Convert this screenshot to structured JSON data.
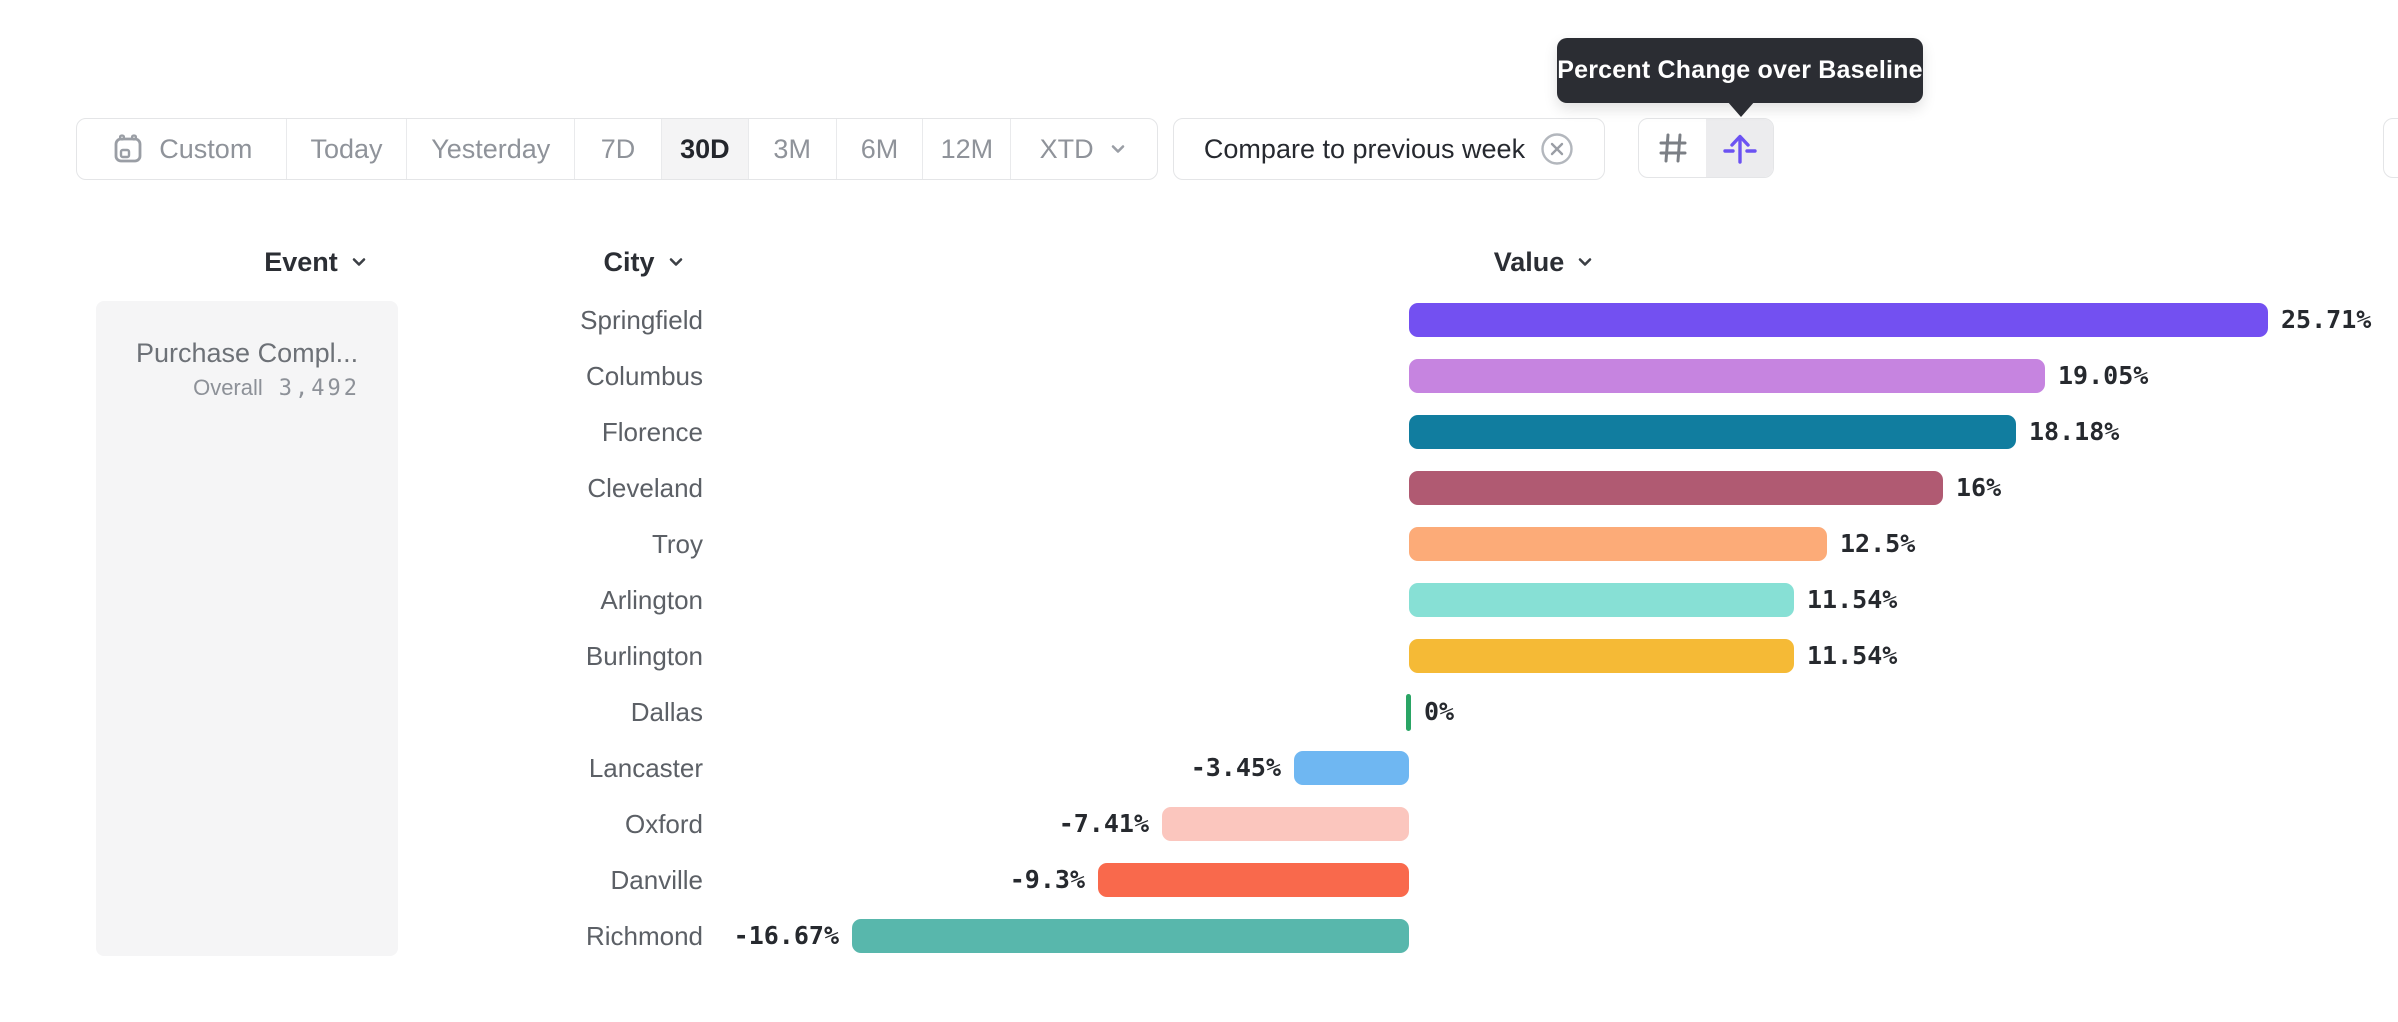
{
  "tooltip": {
    "text": "Percent Change over Baseline"
  },
  "toolbar": {
    "items": [
      {
        "label": "Custom",
        "icon": "calendar-icon",
        "active": false
      },
      {
        "label": "Today",
        "active": false
      },
      {
        "label": "Yesterday",
        "active": false
      },
      {
        "label": "7D",
        "active": false
      },
      {
        "label": "30D",
        "active": true
      },
      {
        "label": "3M",
        "active": false
      },
      {
        "label": "6M",
        "active": false
      },
      {
        "label": "12M",
        "active": false
      },
      {
        "label": "XTD",
        "icon": "chevron-down-icon",
        "active": false
      }
    ]
  },
  "compare_chip": {
    "label": "Compare to previous week",
    "icon": "circle-x-icon"
  },
  "view_toggle": {
    "buttons": [
      {
        "icon": "grid-icon",
        "active": false,
        "color": "#7b7f85"
      },
      {
        "icon": "baseline-arrow-icon",
        "active": true,
        "color": "#6b52f2"
      }
    ]
  },
  "columns": {
    "event": "Event",
    "city": "City",
    "value": "Value"
  },
  "event_card": {
    "title": "Purchase Compl...",
    "overall_label": "Overall",
    "overall_value": "3,492"
  },
  "chart_data": {
    "type": "bar",
    "orientation": "horizontal",
    "title": "",
    "xlabel": "Value",
    "ylabel": "City",
    "xlim": [
      -18,
      27
    ],
    "grid": false,
    "zero_marker_color": "#2aa565",
    "categories": [
      "Springfield",
      "Columbus",
      "Florence",
      "Cleveland",
      "Troy",
      "Arlington",
      "Burlington",
      "Dallas",
      "Lancaster",
      "Oxford",
      "Danville",
      "Richmond"
    ],
    "values": [
      25.71,
      19.05,
      18.18,
      16,
      12.5,
      11.54,
      11.54,
      0,
      -3.45,
      -7.41,
      -9.3,
      -16.67
    ],
    "labels": [
      "25.71%",
      "19.05%",
      "18.18%",
      "16%",
      "12.5%",
      "11.54%",
      "11.54%",
      "0%",
      "-3.45%",
      "-7.41%",
      "-9.3%",
      "-16.67%"
    ],
    "bar_colors": [
      "#7350f1",
      "#c684e0",
      "#117d9f",
      "#b05a72",
      "#fcab78",
      "#87e0d5",
      "#f5ba36",
      "#2aa565",
      "#6fb7f2",
      "#fbc6be",
      "#f9694c",
      "#58b7ac"
    ]
  }
}
